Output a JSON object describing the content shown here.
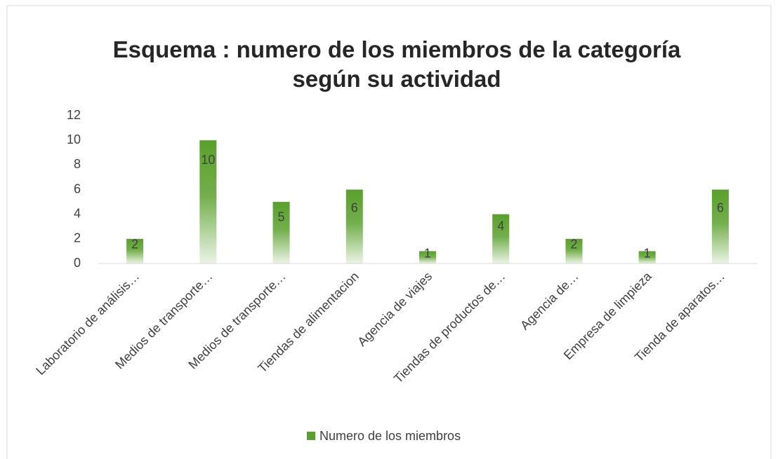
{
  "chart_data": {
    "type": "bar",
    "title": "Esquema : numero de los miembros de la categoría según su actividad",
    "categories": [
      "Laboratorio de análisis…",
      "Medios de transporte…",
      "Medios de transporte…",
      "Tiendas de alimentacion",
      "Agencia de viajes",
      "Tiendas de productos de…",
      "Agencia de…",
      "Empresa de limpieza",
      "Tienda de aparatos…"
    ],
    "series": [
      {
        "name": "Numero de los miembros",
        "color": "#5aa02c",
        "values": [
          2,
          10,
          5,
          6,
          1,
          4,
          2,
          1,
          6
        ]
      }
    ],
    "ylim": [
      0,
      12
    ],
    "yticks": [
      0,
      2,
      4,
      6,
      8,
      10,
      12
    ],
    "grid": false,
    "legend": "bottom"
  }
}
